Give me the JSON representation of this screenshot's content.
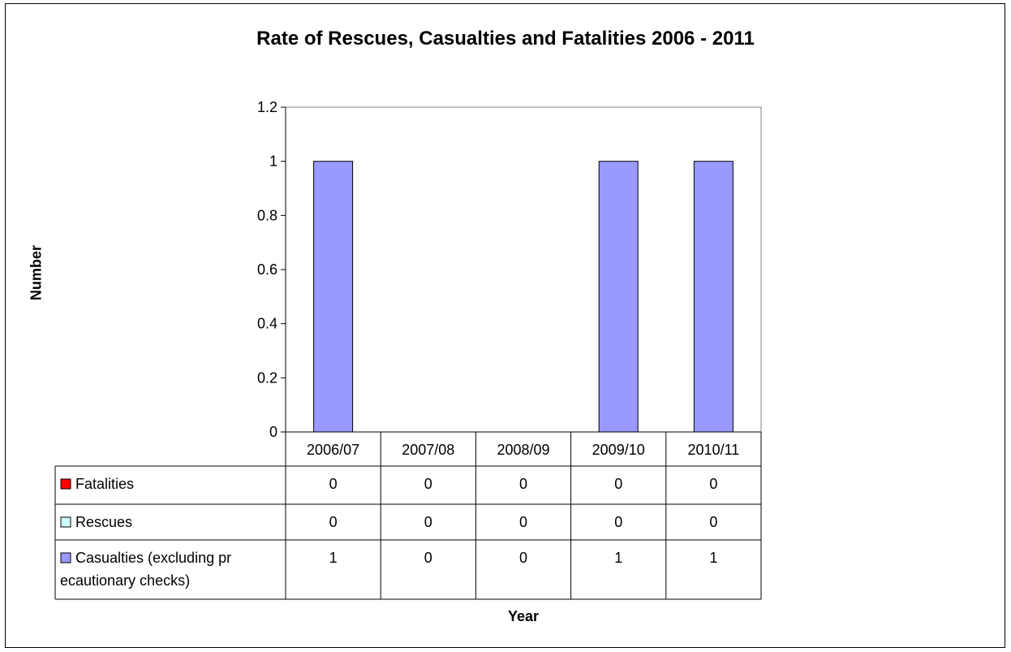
{
  "chart_data": {
    "type": "bar",
    "title": "Rate of Rescues, Casualties and Fatalities 2006 - 2011",
    "xlabel": "Year",
    "ylabel": "Number",
    "ylim": [
      0,
      1.2
    ],
    "yticks": [
      "0",
      "0.2",
      "0.4",
      "0.6",
      "0.8",
      "1",
      "1.2"
    ],
    "categories": [
      "2006/07",
      "2007/08",
      "2008/09",
      "2009/10",
      "2010/11"
    ],
    "series": [
      {
        "name": "Fatalities",
        "values": [
          0,
          0,
          0,
          0,
          0
        ],
        "color": "#ff0000"
      },
      {
        "name": "Rescues",
        "values": [
          0,
          0,
          0,
          0,
          0
        ],
        "color": "#ccffff"
      },
      {
        "name": "Casualties (excluding precautionary checks)",
        "values": [
          1,
          0,
          0,
          1,
          1
        ],
        "color": "#9999ff"
      }
    ],
    "grid": false,
    "legend": "data-table"
  }
}
